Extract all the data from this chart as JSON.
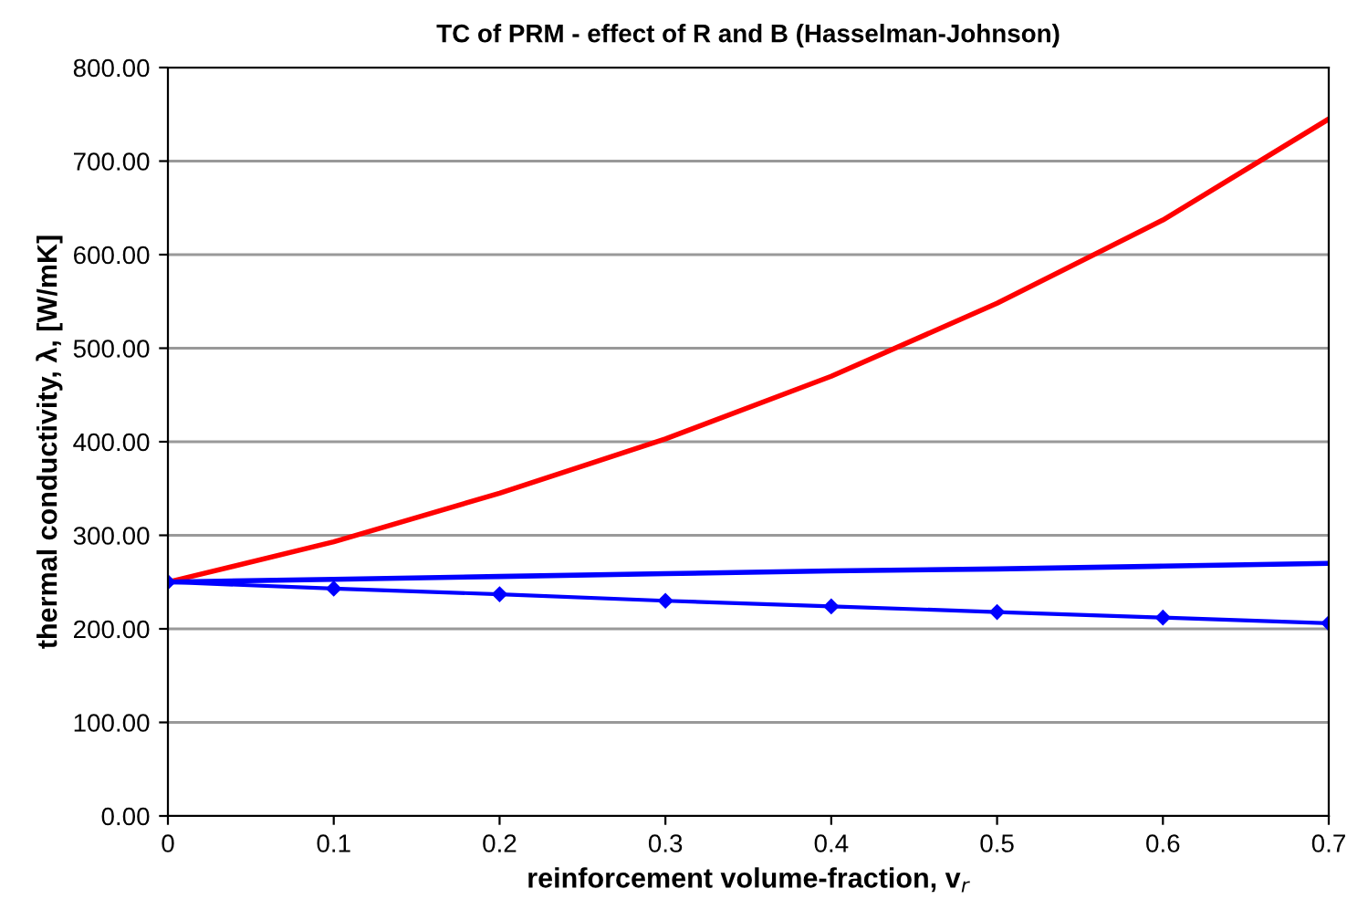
{
  "chart_data": {
    "type": "line",
    "title": "TC of PRM - effect of R and B (Hasselman-Johnson)",
    "xlabel": "reinforcement volume-fraction, v$_{r}$",
    "ylabel": "thermal conductivity, λ, [W/mK]",
    "x": [
      0,
      0.1,
      0.2,
      0.3,
      0.4,
      0.5,
      0.6,
      0.7
    ],
    "series": [
      {
        "color": "#ff0000",
        "values": [
          250,
          293,
          345,
          403,
          470,
          548,
          637,
          745
        ],
        "marker": "none"
      },
      {
        "color": "#0000ff",
        "values": [
          250,
          253,
          256,
          259,
          262,
          264,
          267,
          270
        ],
        "marker": "none"
      },
      {
        "color": "#0000ff",
        "values": [
          250,
          243,
          237,
          230,
          224,
          218,
          212,
          206
        ],
        "marker": "diamond"
      }
    ],
    "xlim": [
      0,
      0.7
    ],
    "xticks": [
      0,
      0.1,
      0.2,
      0.3,
      0.4,
      0.5,
      0.6,
      0.7
    ],
    "ylim": [
      0,
      800
    ],
    "yticks": [
      {
        "value": 0,
        "label": "0.00"
      },
      {
        "value": 100,
        "label": "100.00"
      },
      {
        "value": 200,
        "label": "200.00"
      },
      {
        "value": 300,
        "label": "300.00"
      },
      {
        "value": 400,
        "label": "400.00"
      },
      {
        "value": 500,
        "label": "500.00"
      },
      {
        "value": 600,
        "label": "600.00"
      },
      {
        "value": 700,
        "label": "700.00"
      },
      {
        "value": 800,
        "label": "800.00"
      }
    ],
    "grid": "y",
    "legend": false
  }
}
